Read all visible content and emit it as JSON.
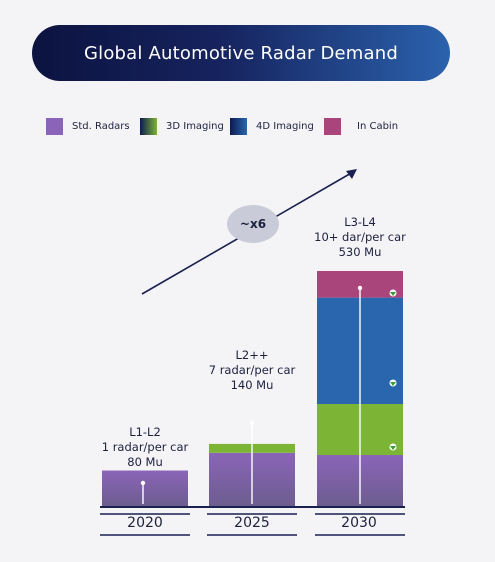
{
  "chart_data": {
    "type": "bar",
    "stacked": true,
    "title": "Global Automotive Radar Demand",
    "categories": [
      "2020",
      "2025",
      "2030"
    ],
    "series": [
      {
        "name": "Std. Radars",
        "values": [
          80,
          120,
          115
        ],
        "color": "#8a64b8"
      },
      {
        "name": "3D Imaging",
        "values": [
          0,
          20,
          115
        ],
        "color": "#7cb535"
      },
      {
        "name": "4D Imaging",
        "values": [
          0,
          0,
          240
        ],
        "color": "#2a66ad"
      },
      {
        "name": "In Cabin",
        "values": [
          0,
          0,
          60
        ],
        "color": "#a9457b"
      }
    ],
    "totals_label": [
      "80 Mu",
      "140 Mu",
      "530 Mu"
    ],
    "annotations": [
      {
        "category": "2020",
        "text": "L1-L2\n1 radar/per car\n80 Mu"
      },
      {
        "category": "2025",
        "text": "L2++\n7 radar/per car\n140 Mu"
      },
      {
        "category": "2030",
        "text": "L3-L4\n10+ dar/per car\n530 Mu"
      }
    ],
    "growth_label": "~x6",
    "ylim": [
      0,
      560
    ],
    "grid": false,
    "legend_position": "top",
    "xlabel": "",
    "ylabel": ""
  },
  "legend": [
    {
      "label": "Std. Radars",
      "swatch": "solid",
      "colors": [
        "#8a64b8"
      ]
    },
    {
      "label": "3D Imaging",
      "swatch": "gradient",
      "colors": [
        "#0d1a52",
        "#7cb535"
      ]
    },
    {
      "label": "4D Imaging",
      "swatch": "gradient",
      "colors": [
        "#0d1a52",
        "#2a66ad"
      ]
    },
    {
      "label": "In Cabin",
      "swatch": "solid",
      "colors": [
        "#a9457b"
      ]
    }
  ],
  "colors": {
    "title_gradient_start": "#0c1340",
    "title_gradient_end": "#2b62ad",
    "axis": "#1a2050",
    "arrow": "#1a2050",
    "badge": "#c9cbd8"
  }
}
